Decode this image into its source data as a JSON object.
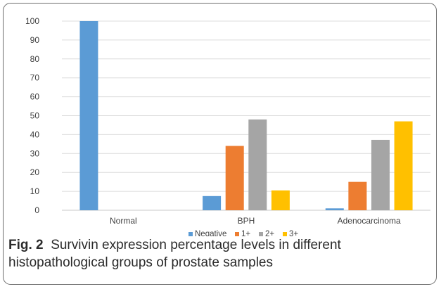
{
  "figure": {
    "label": "Fig. 2",
    "caption": "Survivin expression percentage levels in different histopathological groups of prostate samples"
  },
  "chart_data": {
    "type": "bar",
    "categories": [
      "Normal",
      "BPH",
      "Adenocarcinoma"
    ],
    "series": [
      {
        "name": "Negative",
        "color": "#5b9bd5",
        "values": [
          100,
          7.5,
          1
        ]
      },
      {
        "name": "1+",
        "color": "#ed7d31",
        "values": [
          0,
          34,
          15
        ]
      },
      {
        "name": "2+",
        "color": "#a5a5a5",
        "values": [
          0,
          48,
          37.2
        ]
      },
      {
        "name": "3+",
        "color": "#ffc000",
        "values": [
          0,
          10.5,
          47
        ]
      }
    ],
    "ylim": [
      0,
      100
    ],
    "yticks": [
      "0",
      "10",
      "20",
      "30",
      "40",
      "50",
      "60",
      "70",
      "80",
      "90",
      "100"
    ],
    "grid": true,
    "legend_position": "bottom"
  }
}
